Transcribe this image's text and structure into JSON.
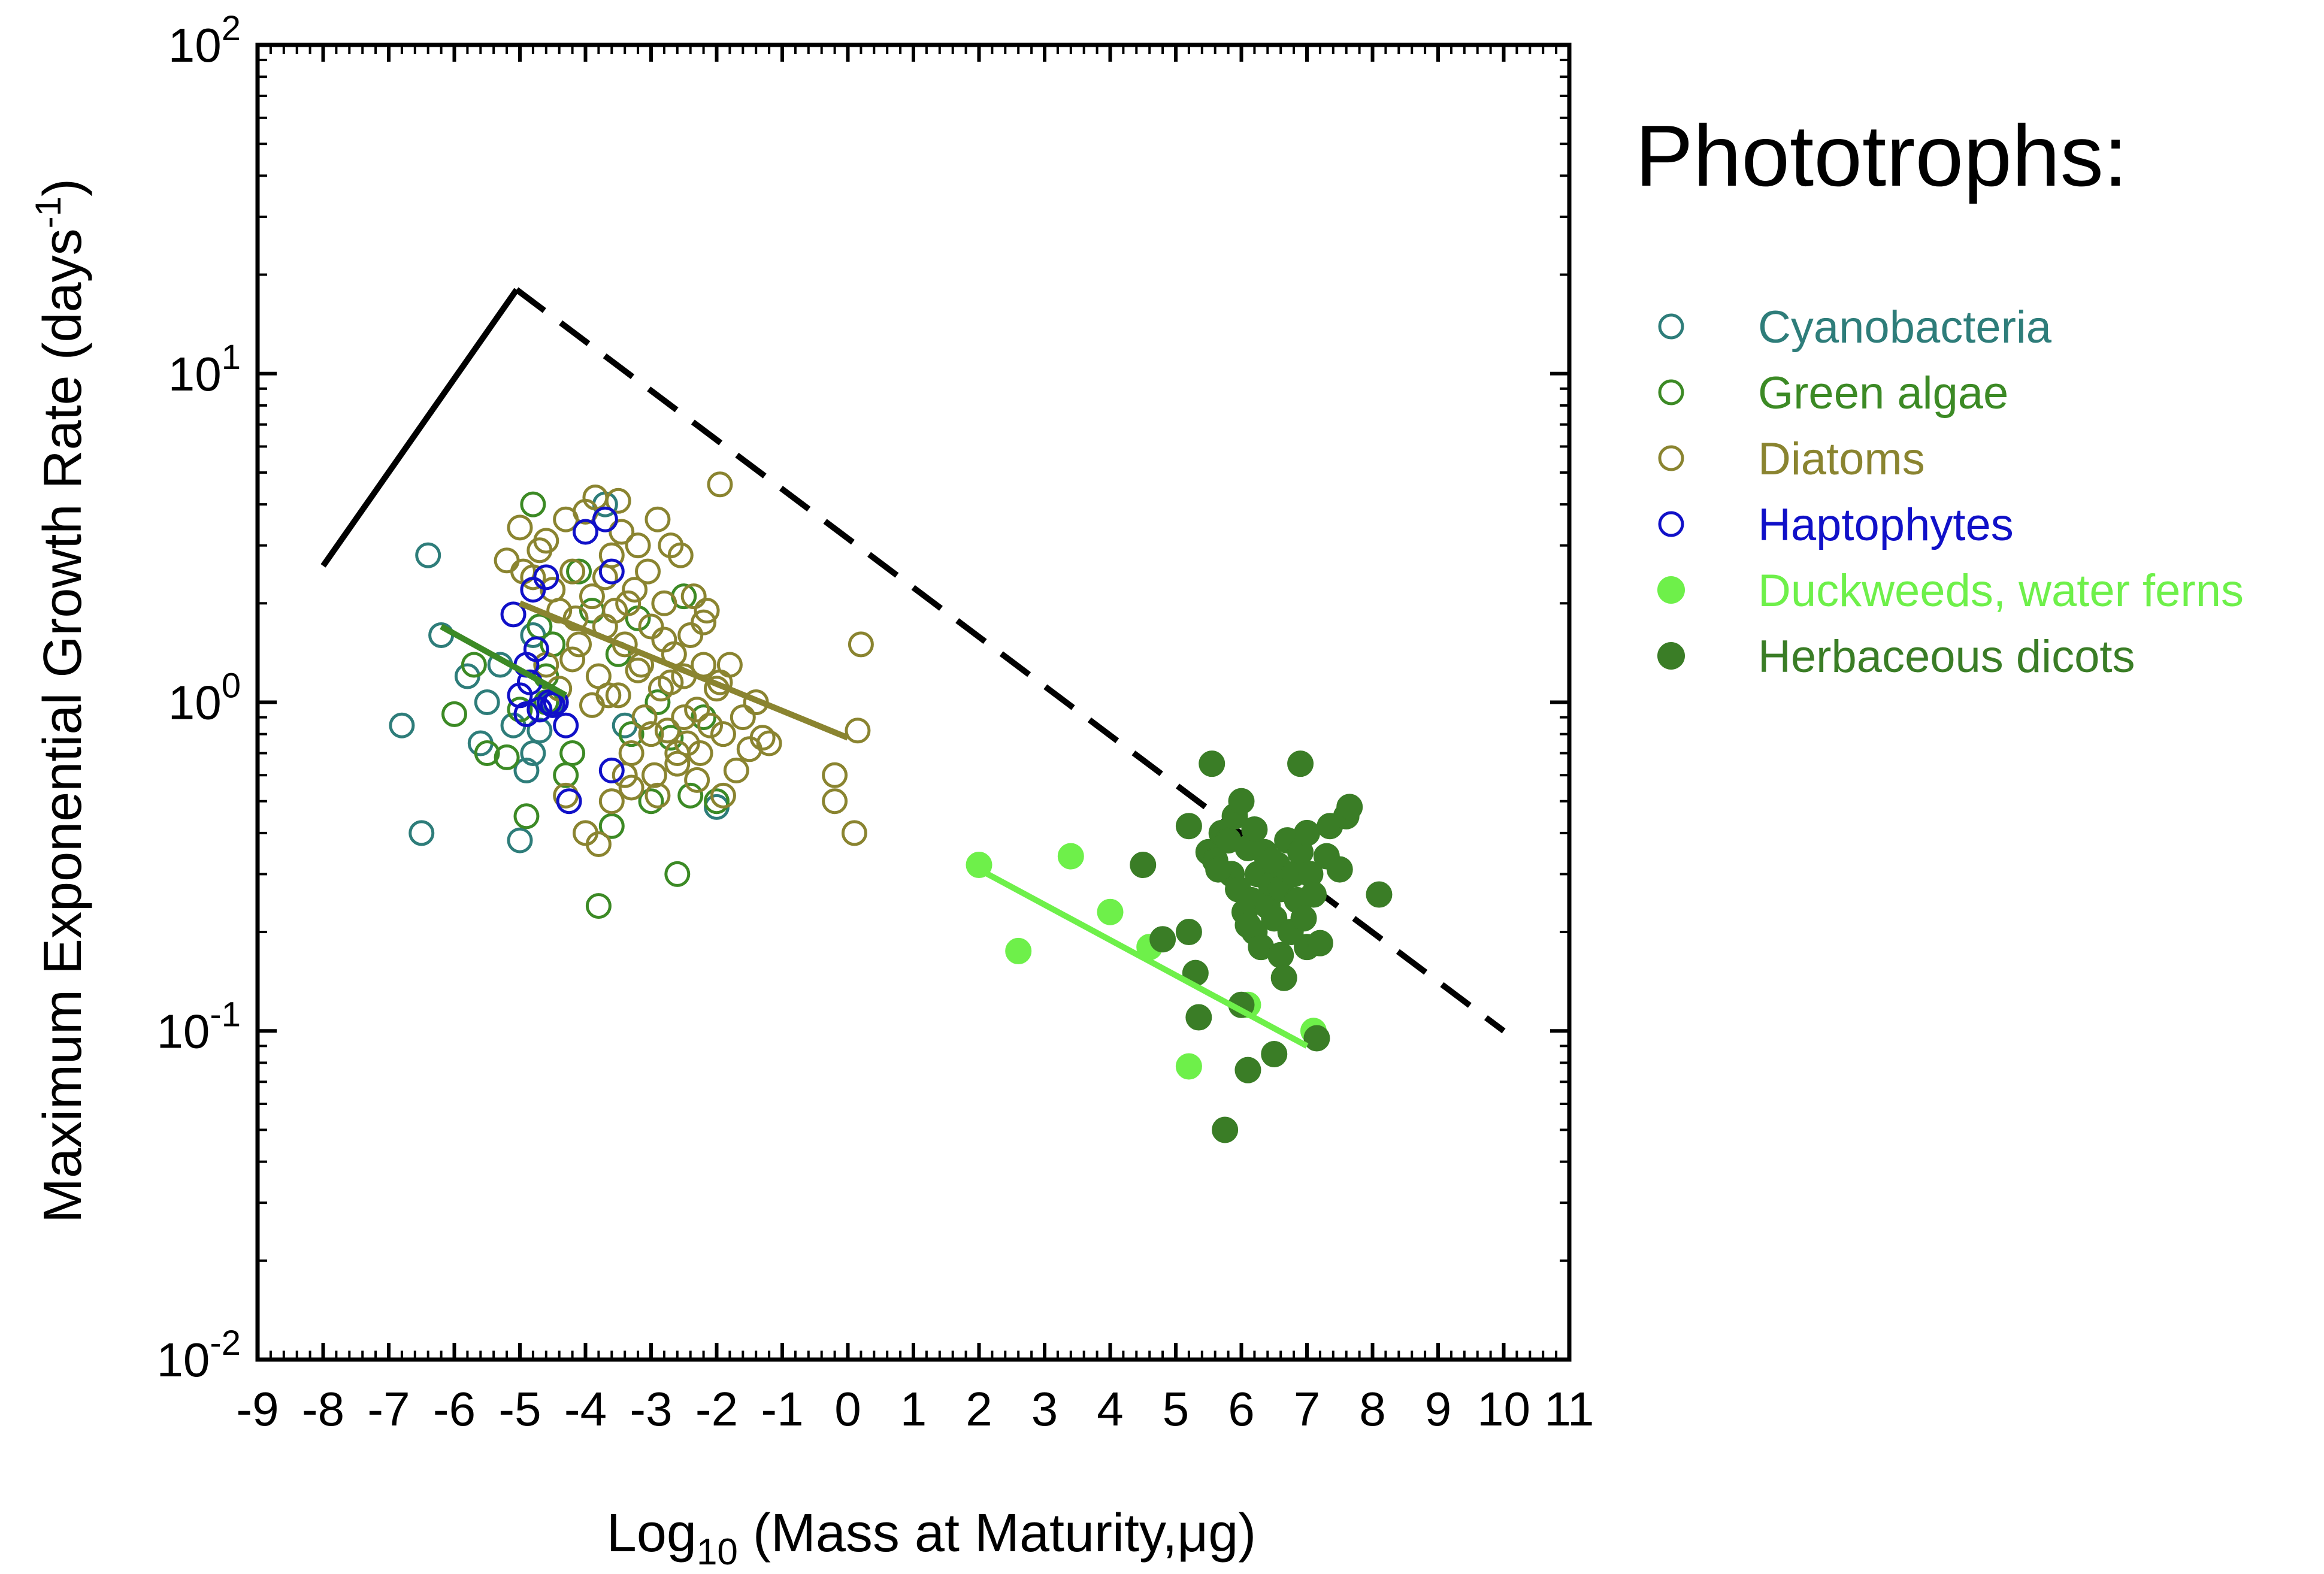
{
  "chart_data": {
    "type": "scatter",
    "xlabel": {
      "prefix": "Log",
      "sub": "10",
      "suffix": " (Mass at Maturity,μg)"
    },
    "ylabel": {
      "main": "Maximum Exponential Growth Rate (days",
      "sup": "-1",
      "close": ")"
    },
    "y_scale": "log",
    "xlim": [
      -9,
      11
    ],
    "ylim": [
      0.01,
      100
    ],
    "x_ticks": [
      "-9",
      "-8",
      "-7",
      "-6",
      "-5",
      "-4",
      "-3",
      "-2",
      "-1",
      "0",
      "1",
      "2",
      "3",
      "4",
      "5",
      "6",
      "7",
      "8",
      "9",
      "10",
      "11"
    ],
    "y_ticks": [
      {
        "value": 0.01,
        "base": "10",
        "exp": "-2"
      },
      {
        "value": 0.1,
        "base": "10",
        "exp": "-1"
      },
      {
        "value": 1,
        "base": "10",
        "exp": "0"
      },
      {
        "value": 10,
        "base": "10",
        "exp": "1"
      },
      {
        "value": 100,
        "base": "10",
        "exp": "2"
      }
    ],
    "grid": false,
    "legend": {
      "title": "Phototrophs:",
      "position": "right"
    },
    "series": [
      {
        "name": "Cyanobacteria",
        "color": "#2e7d7a",
        "marker": "open-circle",
        "points": [
          [
            -6.4,
            2.8
          ],
          [
            -6.2,
            1.6
          ],
          [
            -6.8,
            0.85
          ],
          [
            -6.5,
            0.4
          ],
          [
            -5.8,
            1.2
          ],
          [
            -5.6,
            0.75
          ],
          [
            -5.5,
            1.0
          ],
          [
            -5.1,
            0.85
          ],
          [
            -4.9,
            0.62
          ],
          [
            -4.8,
            0.7
          ],
          [
            -4.7,
            0.82
          ],
          [
            -5.0,
            0.38
          ],
          [
            -3.4,
            0.85
          ],
          [
            -2.0,
            0.48
          ],
          [
            -3.7,
            4.0
          ],
          [
            -4.8,
            1.6
          ],
          [
            -4.5,
            1.0
          ],
          [
            -5.3,
            1.3
          ]
        ]
      },
      {
        "name": "Green algae",
        "color": "#3c8a25",
        "marker": "open-circle",
        "points": [
          [
            -6.0,
            0.92
          ],
          [
            -5.7,
            1.3
          ],
          [
            -5.5,
            0.7
          ],
          [
            -5.2,
            0.68
          ],
          [
            -4.8,
            4.0
          ],
          [
            -4.7,
            1.7
          ],
          [
            -4.9,
            0.45
          ],
          [
            -4.6,
            1.0
          ],
          [
            -4.5,
            1.5
          ],
          [
            -4.2,
            0.7
          ],
          [
            -4.1,
            2.5
          ],
          [
            -3.9,
            1.9
          ],
          [
            -3.8,
            0.24
          ],
          [
            -3.6,
            0.42
          ],
          [
            -3.5,
            1.4
          ],
          [
            -3.3,
            0.8
          ],
          [
            -3.0,
            0.5
          ],
          [
            -2.9,
            1.0
          ],
          [
            -2.7,
            0.78
          ],
          [
            -2.6,
            0.3
          ],
          [
            -2.4,
            0.52
          ],
          [
            -2.2,
            0.9
          ],
          [
            -2.0,
            0.5
          ],
          [
            -4.6,
            1.2
          ],
          [
            -5.0,
            0.95
          ],
          [
            -4.3,
            0.6
          ],
          [
            -3.2,
            1.8
          ],
          [
            -2.5,
            2.1
          ]
        ]
      },
      {
        "name": "Diatoms",
        "color": "#8a8430",
        "marker": "open-circle",
        "points": [
          [
            -5.2,
            2.7
          ],
          [
            -5.0,
            3.4
          ],
          [
            -4.8,
            2.4
          ],
          [
            -4.7,
            2.9
          ],
          [
            -4.6,
            3.1
          ],
          [
            -4.5,
            2.2
          ],
          [
            -4.4,
            1.9
          ],
          [
            -4.3,
            3.6
          ],
          [
            -4.2,
            2.5
          ],
          [
            -4.1,
            1.5
          ],
          [
            -4.0,
            3.8
          ],
          [
            -3.9,
            2.1
          ],
          [
            -3.85,
            4.2
          ],
          [
            -3.8,
            1.2
          ],
          [
            -3.7,
            1.7
          ],
          [
            -3.6,
            2.8
          ],
          [
            -3.55,
            1.9
          ],
          [
            -3.5,
            1.05
          ],
          [
            -3.45,
            3.3
          ],
          [
            -3.4,
            1.5
          ],
          [
            -3.3,
            0.7
          ],
          [
            -3.25,
            2.2
          ],
          [
            -3.2,
            3.0
          ],
          [
            -3.15,
            1.3
          ],
          [
            -3.1,
            0.9
          ],
          [
            -3.05,
            2.5
          ],
          [
            -3.0,
            1.7
          ],
          [
            -2.95,
            0.6
          ],
          [
            -2.9,
            3.6
          ],
          [
            -2.85,
            1.1
          ],
          [
            -2.8,
            2.0
          ],
          [
            -2.75,
            0.82
          ],
          [
            -2.7,
            3.0
          ],
          [
            -2.65,
            1.4
          ],
          [
            -2.6,
            0.7
          ],
          [
            -2.55,
            2.8
          ],
          [
            -2.5,
            1.2
          ],
          [
            -2.45,
            0.75
          ],
          [
            -2.4,
            1.6
          ],
          [
            -2.35,
            2.1
          ],
          [
            -2.3,
            0.95
          ],
          [
            -2.25,
            0.7
          ],
          [
            -2.2,
            1.3
          ],
          [
            -2.15,
            1.9
          ],
          [
            -2.1,
            0.85
          ],
          [
            -2.0,
            1.1
          ],
          [
            -1.95,
            4.6
          ],
          [
            -1.9,
            0.8
          ],
          [
            -1.8,
            1.3
          ],
          [
            -1.7,
            0.62
          ],
          [
            -1.6,
            0.9
          ],
          [
            -1.5,
            0.72
          ],
          [
            -1.4,
            1.0
          ],
          [
            -1.3,
            0.78
          ],
          [
            -1.2,
            0.75
          ],
          [
            -0.2,
            0.6
          ],
          [
            -0.2,
            0.5
          ],
          [
            0.1,
            0.4
          ],
          [
            0.15,
            0.82
          ],
          [
            0.2,
            1.5
          ],
          [
            -4.3,
            0.52
          ],
          [
            -4.0,
            0.4
          ],
          [
            -3.8,
            0.37
          ],
          [
            -3.6,
            0.5
          ],
          [
            -3.3,
            0.55
          ],
          [
            -2.9,
            0.52
          ],
          [
            -2.6,
            0.65
          ],
          [
            -2.3,
            0.58
          ],
          [
            -1.9,
            0.52
          ],
          [
            -3.4,
            0.6
          ],
          [
            -4.6,
            1.3
          ],
          [
            -4.4,
            1.1
          ],
          [
            -4.2,
            1.35
          ],
          [
            -3.9,
            0.98
          ],
          [
            -3.7,
            2.4
          ],
          [
            -3.5,
            4.1
          ],
          [
            -3.2,
            1.25
          ],
          [
            -2.8,
            1.55
          ],
          [
            -2.5,
            0.9
          ],
          [
            -2.2,
            1.75
          ],
          [
            -1.95,
            1.15
          ],
          [
            -4.95,
            2.5
          ],
          [
            -4.15,
            1.8
          ],
          [
            -3.65,
            1.05
          ],
          [
            -3.35,
            2.0
          ],
          [
            -3.0,
            0.8
          ],
          [
            -2.7,
            1.15
          ]
        ]
      },
      {
        "name": "Haptophytes",
        "color": "#1010c8",
        "marker": "open-circle",
        "points": [
          [
            -5.1,
            1.85
          ],
          [
            -4.9,
            1.3
          ],
          [
            -4.85,
            1.15
          ],
          [
            -4.8,
            2.2
          ],
          [
            -4.75,
            1.45
          ],
          [
            -4.7,
            0.95
          ],
          [
            -4.6,
            2.4
          ],
          [
            -4.55,
            1.0
          ],
          [
            -4.5,
            0.98
          ],
          [
            -4.45,
            1.0
          ],
          [
            -4.3,
            0.85
          ],
          [
            -4.25,
            0.5
          ],
          [
            -4.0,
            3.3
          ],
          [
            -3.7,
            3.6
          ],
          [
            -3.6,
            2.5
          ],
          [
            -3.6,
            0.62
          ],
          [
            -5.0,
            1.05
          ],
          [
            -4.9,
            0.92
          ]
        ]
      },
      {
        "name": "Duckweeds, water ferns",
        "color": "#6ef04a",
        "marker": "filled-circle",
        "points": [
          [
            2.0,
            0.32
          ],
          [
            2.6,
            0.175
          ],
          [
            3.4,
            0.34
          ],
          [
            4.0,
            0.23
          ],
          [
            4.6,
            0.18
          ],
          [
            5.2,
            0.078
          ],
          [
            6.1,
            0.12
          ],
          [
            7.1,
            0.1
          ]
        ]
      },
      {
        "name": "Herbaceous dicots",
        "color": "#3a7d26",
        "marker": "filled-circle",
        "points": [
          [
            4.5,
            0.32
          ],
          [
            4.8,
            0.19
          ],
          [
            5.2,
            0.42
          ],
          [
            5.2,
            0.2
          ],
          [
            5.3,
            0.15
          ],
          [
            5.35,
            0.11
          ],
          [
            5.5,
            0.35
          ],
          [
            5.55,
            0.65
          ],
          [
            5.6,
            0.33
          ],
          [
            5.7,
            0.4
          ],
          [
            5.75,
            0.05
          ],
          [
            5.8,
            0.38
          ],
          [
            5.85,
            0.3
          ],
          [
            5.9,
            0.45
          ],
          [
            5.95,
            0.27
          ],
          [
            6.0,
            0.5
          ],
          [
            6.0,
            0.12
          ],
          [
            6.05,
            0.23
          ],
          [
            6.1,
            0.36
          ],
          [
            6.1,
            0.076
          ],
          [
            6.15,
            0.25
          ],
          [
            6.2,
            0.41
          ],
          [
            6.2,
            0.2
          ],
          [
            6.25,
            0.3
          ],
          [
            6.3,
            0.18
          ],
          [
            6.35,
            0.35
          ],
          [
            6.4,
            0.24
          ],
          [
            6.45,
            0.28
          ],
          [
            6.5,
            0.22
          ],
          [
            6.5,
            0.085
          ],
          [
            6.55,
            0.32
          ],
          [
            6.6,
            0.17
          ],
          [
            6.6,
            0.27
          ],
          [
            6.65,
            0.145
          ],
          [
            6.7,
            0.38
          ],
          [
            6.75,
            0.2
          ],
          [
            6.8,
            0.3
          ],
          [
            6.85,
            0.25
          ],
          [
            6.9,
            0.65
          ],
          [
            6.9,
            0.35
          ],
          [
            6.95,
            0.22
          ],
          [
            7.0,
            0.4
          ],
          [
            7.0,
            0.18
          ],
          [
            7.05,
            0.3
          ],
          [
            7.1,
            0.26
          ],
          [
            7.15,
            0.095
          ],
          [
            7.2,
            0.185
          ],
          [
            7.3,
            0.34
          ],
          [
            7.35,
            0.42
          ],
          [
            7.5,
            0.31
          ],
          [
            7.6,
            0.45
          ],
          [
            7.65,
            0.48
          ],
          [
            8.1,
            0.26
          ],
          [
            6.45,
            0.33
          ],
          [
            6.1,
            0.21
          ],
          [
            5.65,
            0.31
          ]
        ]
      }
    ],
    "fit_lines": [
      {
        "series": "Green algae",
        "color": "#3c8a25",
        "x": [
          -6.2,
          -4.3
        ],
        "y": [
          1.7,
          1.05
        ]
      },
      {
        "series": "Diatoms",
        "color": "#8a8430",
        "x": [
          -5.0,
          0.0
        ],
        "y": [
          2.0,
          0.78
        ]
      },
      {
        "series": "Duckweeds, water ferns",
        "color": "#6ef04a",
        "x": [
          2.0,
          7.0
        ],
        "y": [
          0.31,
          0.09
        ]
      }
    ],
    "envelope": {
      "solid": {
        "x": [
          -8.0,
          -5.05
        ],
        "y": [
          2.6,
          18
        ]
      },
      "dashed": {
        "x": [
          -5.05,
          10.0
        ],
        "y": [
          18,
          0.1
        ]
      }
    }
  }
}
